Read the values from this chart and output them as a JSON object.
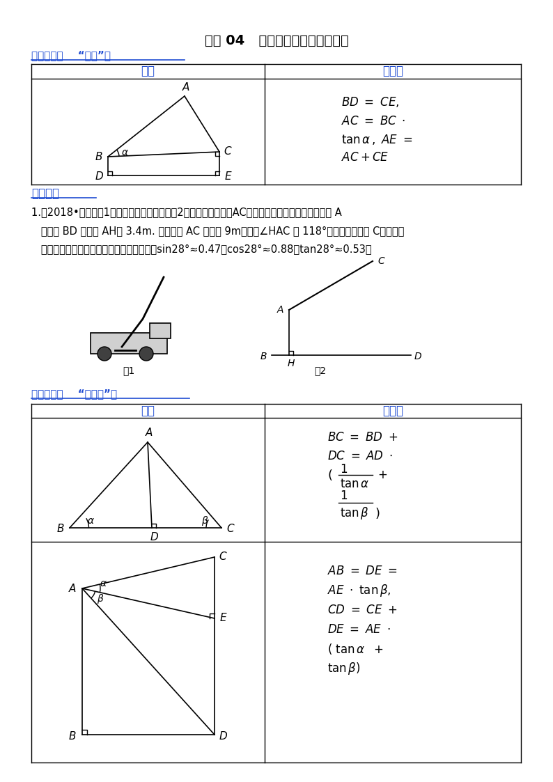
{
  "title": "专题 04   三角函数的应用模型解题",
  "bg_color": "#ffffff",
  "blue_color": "#1E4BD2",
  "section1_label": "解题模型一    “独立”型",
  "section2_label": "解题模型二    “背靠背”型",
  "practice_label": "针对训练",
  "practice_text1": "1.（2018•台州）图1是一辆吊车的实物图，图2是其工作示意图，AC是可以伸缩的起重臂，其转动点 A",
  "practice_text2": "   离地面 BD 的高度 AH为 3.4m. 当起重臂 AC 长度为 9m，张角∠HAC 为 118°时，求操作平台 C离地面的",
  "practice_text3": "   高度（结果保留小数点后一位：参考数据：sin28°≈0.47，cos28°≈0.88，tan28°≈0.53）",
  "fig1_label": "图1",
  "fig2_label": "图2"
}
